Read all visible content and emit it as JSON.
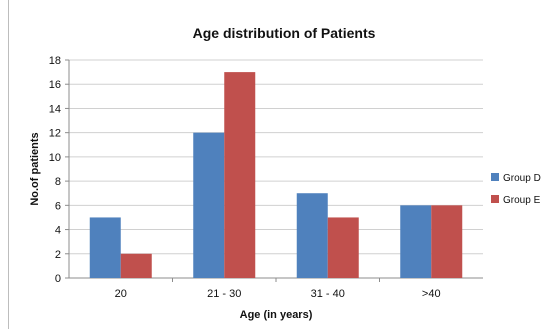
{
  "chart_data": {
    "type": "bar",
    "title": "Age distribution of Patients",
    "xlabel": "Age (in years)",
    "ylabel": "No.of patients",
    "categories": [
      "20",
      "21 - 30",
      "31 - 40",
      ">40"
    ],
    "series": [
      {
        "name": "Group D",
        "values": [
          5,
          12,
          7,
          6
        ],
        "color": "#4f81bd"
      },
      {
        "name": "Group E",
        "values": [
          2,
          17,
          5,
          6
        ],
        "color": "#c0504d"
      }
    ],
    "ylim": [
      0,
      18
    ],
    "yticks": [
      0,
      2,
      4,
      6,
      8,
      10,
      12,
      14,
      16,
      18
    ],
    "grid": true,
    "legend_position": "right"
  }
}
